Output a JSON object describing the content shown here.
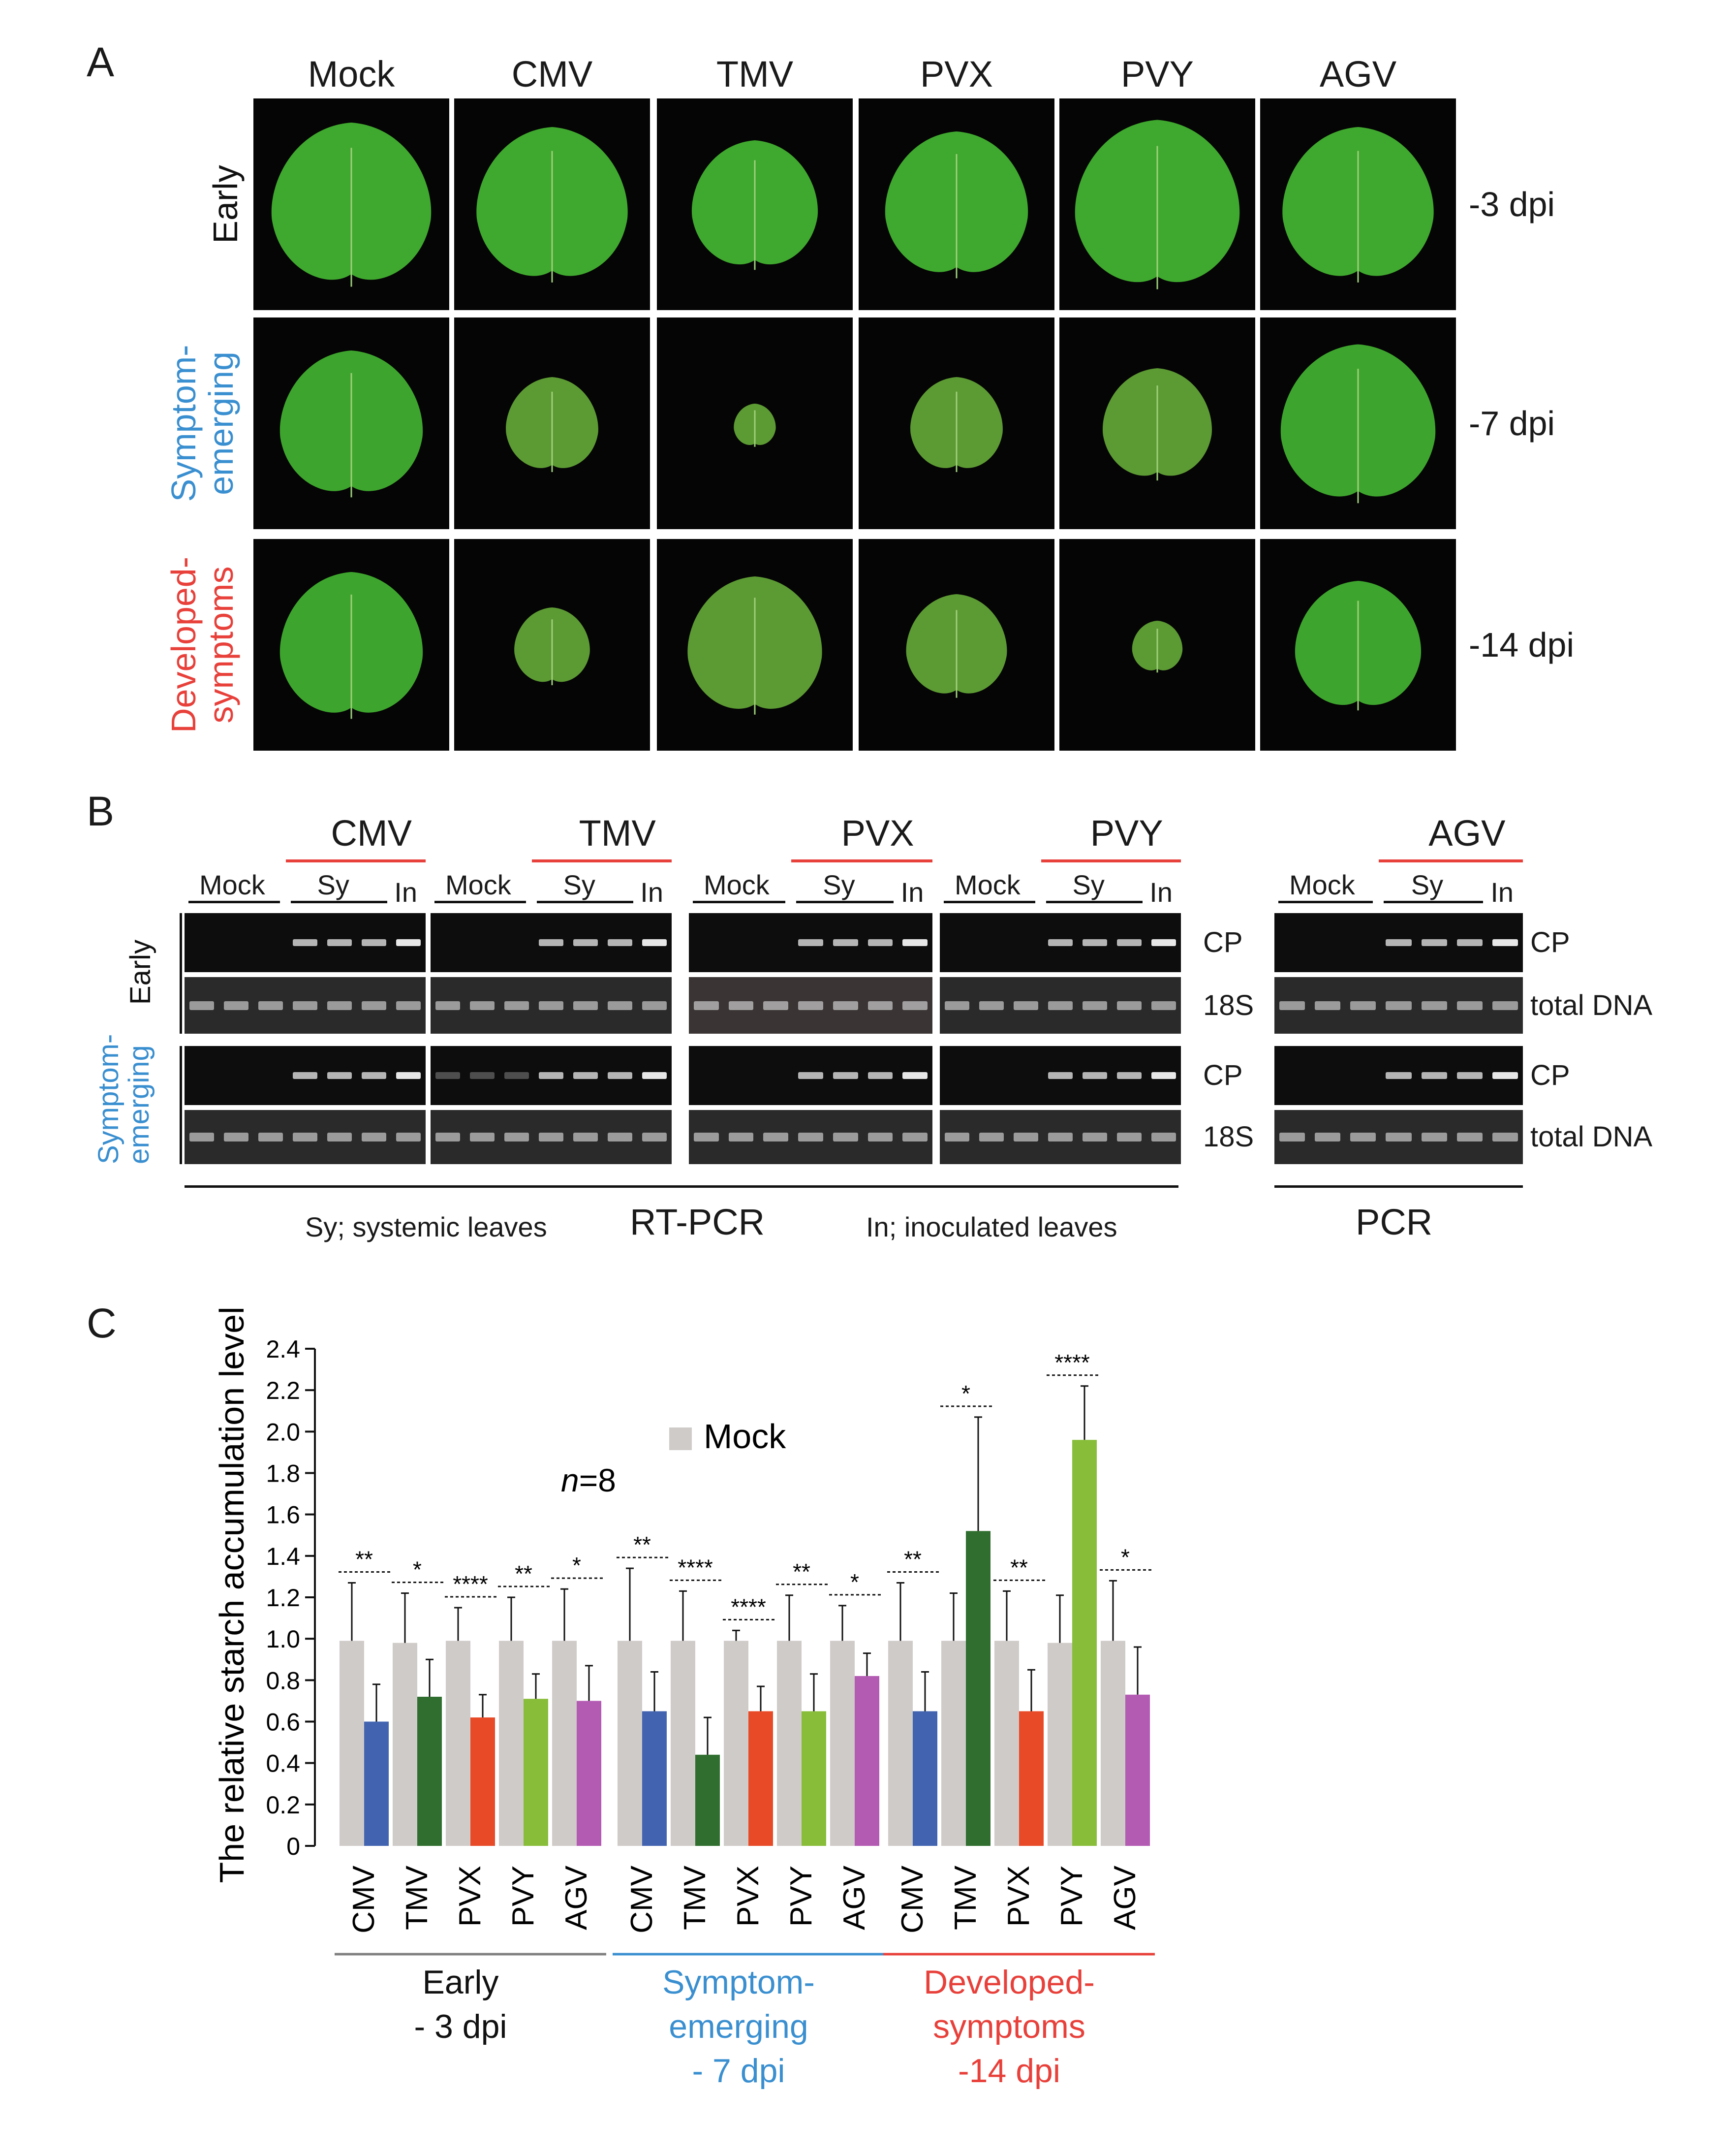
{
  "panelA": {
    "letter": "A",
    "columns": [
      "Mock",
      "CMV",
      "TMV",
      "PVX",
      "PVY",
      "AGV"
    ],
    "rows": [
      {
        "label": "Early",
        "color": "#111111",
        "dpi": "-3 dpi"
      },
      {
        "label": "Symptom-\nemerging",
        "color": "#3a8fd0",
        "dpi": "-7 dpi"
      },
      {
        "label": "Developed-\nsymptoms",
        "color": "#e8403a",
        "dpi": "-14 dpi"
      }
    ]
  },
  "panelB": {
    "letter": "B",
    "viruses": [
      "CMV",
      "TMV",
      "PVX",
      "PVY",
      "AGV"
    ],
    "lane_groups": {
      "mock": "Mock",
      "sy": "Sy",
      "in": "In"
    },
    "row_labels_rt": [
      "CP",
      "18S",
      "CP",
      "18S"
    ],
    "row_labels_pcr": [
      "CP",
      "total DNA",
      "CP",
      "total DNA"
    ],
    "stage_labels": [
      {
        "label": "Early",
        "color": "#111111"
      },
      {
        "label": "Symptom-\nemerging",
        "color": "#3a8fd0"
      }
    ],
    "method_rt": "RT-PCR",
    "method_pcr": "PCR",
    "legend_sy": "Sy; systemic leaves",
    "legend_in": "In; inoculated leaves"
  },
  "panelC": {
    "letter": "C",
    "n_label_italic": "n",
    "n_label_rest": "=8",
    "legend_mock": "Mock"
  },
  "colors": {
    "mock": "#cfcbc8",
    "CMV": "#4264b0",
    "TMV": "#2f6e2e",
    "PVX": "#e84a27",
    "PVY": "#88bd3a",
    "AGV": "#b35ab2",
    "early_line": "#7f7f7f",
    "emerging_line": "#3a8fd0",
    "developed_line": "#e8403a"
  },
  "chart_data": {
    "type": "bar",
    "ylabel": "The relative starch accumulation level",
    "ylim": [
      0,
      2.4
    ],
    "yticks": [
      "0",
      "0.2",
      "0.4",
      "0.6",
      "0.8",
      "1.0",
      "1.2",
      "1.4",
      "1.6",
      "1.8",
      "2.0",
      "2.2",
      "2.4"
    ],
    "groups": [
      {
        "label_lines": [
          "Early",
          "- 3 dpi"
        ],
        "color": "#111111",
        "categories": [
          "CMV",
          "TMV",
          "PVX",
          "PVY",
          "AGV"
        ],
        "mock": [
          0.99,
          0.98,
          0.99,
          0.99,
          0.99
        ],
        "mock_err": [
          0.28,
          0.24,
          0.16,
          0.21,
          0.25
        ],
        "infected": [
          0.6,
          0.72,
          0.62,
          0.71,
          0.7
        ],
        "infected_err": [
          0.18,
          0.18,
          0.11,
          0.12,
          0.17
        ],
        "sig": [
          "**",
          "*",
          "****",
          "**",
          "*"
        ]
      },
      {
        "label_lines": [
          "Symptom-",
          "emerging",
          "- 7 dpi"
        ],
        "color": "#3a8fd0",
        "categories": [
          "CMV",
          "TMV",
          "PVX",
          "PVY",
          "AGV"
        ],
        "mock": [
          0.99,
          0.99,
          0.99,
          0.99,
          0.99
        ],
        "mock_err": [
          0.35,
          0.24,
          0.05,
          0.22,
          0.17
        ],
        "infected": [
          0.65,
          0.44,
          0.65,
          0.65,
          0.82
        ],
        "infected_err": [
          0.19,
          0.18,
          0.12,
          0.18,
          0.11
        ],
        "sig": [
          "**",
          "****",
          "****",
          "**",
          "*"
        ]
      },
      {
        "label_lines": [
          "Developed-",
          "symptoms",
          "-14 dpi"
        ],
        "color": "#e8403a",
        "categories": [
          "CMV",
          "TMV",
          "PVX",
          "PVY",
          "AGV"
        ],
        "mock": [
          0.99,
          0.99,
          0.99,
          0.98,
          0.99
        ],
        "mock_err": [
          0.28,
          0.23,
          0.24,
          0.23,
          0.29
        ],
        "infected": [
          0.65,
          1.52,
          0.65,
          1.96,
          0.73
        ],
        "infected_err": [
          0.19,
          0.55,
          0.2,
          0.26,
          0.23
        ],
        "sig": [
          "**",
          "*",
          "**",
          "****",
          "*"
        ]
      }
    ]
  }
}
